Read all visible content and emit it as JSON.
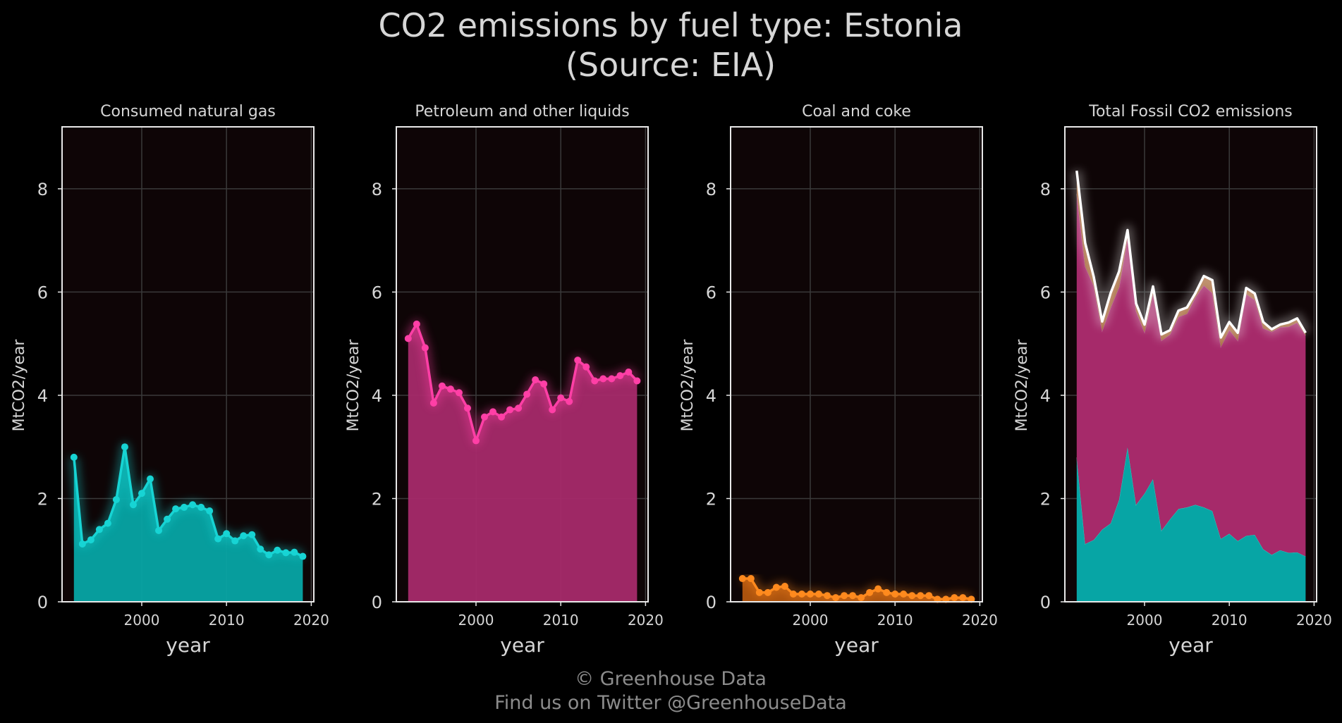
{
  "title_line1": "CO2 emissions by fuel type: Estonia",
  "title_line2": "(Source: EIA)",
  "footer_line1": "© Greenhouse Data",
  "footer_line2": "Find us on Twitter @GreenhouseData",
  "colors": {
    "background": "#000000",
    "panel": "#0e0506",
    "grid": "#3a3a3a",
    "text": "#d6d6d6",
    "gas": "#17d4d4",
    "gas_fill": "#07a5a5",
    "petroleum": "#ff3fa6",
    "petroleum_fill": "#a62a6a",
    "coal": "#ff8a1e",
    "coal_fill": "#b4560f",
    "total": "#ffffff",
    "stack_coal_fill": "#a86a3c"
  },
  "chart_data": [
    {
      "type": "area",
      "title": "Consumed natural gas",
      "xlabel": "year",
      "ylabel": "MtCO2/year",
      "xlim": [
        1990.6,
        2020.3
      ],
      "ylim": [
        0,
        9.2
      ],
      "xticks": [
        2000,
        2010,
        2020
      ],
      "yticks": [
        0,
        2,
        4,
        6,
        8
      ],
      "grid": true,
      "x": [
        1992,
        1993,
        1994,
        1995,
        1996,
        1997,
        1998,
        1999,
        2000,
        2001,
        2002,
        2003,
        2004,
        2005,
        2006,
        2007,
        2008,
        2009,
        2010,
        2011,
        2012,
        2013,
        2014,
        2015,
        2016,
        2017,
        2018,
        2019
      ],
      "series": [
        {
          "key": "gas",
          "values": [
            2.8,
            1.12,
            1.2,
            1.4,
            1.52,
            1.98,
            3.0,
            1.88,
            2.1,
            2.38,
            1.38,
            1.6,
            1.8,
            1.83,
            1.88,
            1.83,
            1.76,
            1.22,
            1.32,
            1.18,
            1.28,
            1.3,
            1.02,
            0.91,
            1.0,
            0.95,
            0.96,
            0.88
          ]
        }
      ]
    },
    {
      "type": "area",
      "title": "Petroleum and other liquids",
      "xlabel": "year",
      "ylabel": "MtCO2/year",
      "xlim": [
        1990.6,
        2020.3
      ],
      "ylim": [
        0,
        9.2
      ],
      "xticks": [
        2000,
        2010,
        2020
      ],
      "yticks": [
        0,
        2,
        4,
        6,
        8
      ],
      "grid": true,
      "x": [
        1992,
        1993,
        1994,
        1995,
        1996,
        1997,
        1998,
        1999,
        2000,
        2001,
        2002,
        2003,
        2004,
        2005,
        2006,
        2007,
        2008,
        2009,
        2010,
        2011,
        2012,
        2013,
        2014,
        2015,
        2016,
        2017,
        2018,
        2019
      ],
      "series": [
        {
          "key": "petroleum",
          "values": [
            5.1,
            5.38,
            4.92,
            3.85,
            4.18,
            4.12,
            4.05,
            3.75,
            3.12,
            3.58,
            3.68,
            3.58,
            3.72,
            3.75,
            4.02,
            4.3,
            4.22,
            3.72,
            3.95,
            3.88,
            4.68,
            4.55,
            4.28,
            4.32,
            4.32,
            4.38,
            4.45,
            4.28
          ]
        }
      ]
    },
    {
      "type": "area",
      "title": "Coal and coke",
      "xlabel": "year",
      "ylabel": "MtCO2/year",
      "xlim": [
        1990.6,
        2020.3
      ],
      "ylim": [
        0,
        9.2
      ],
      "xticks": [
        2000,
        2010,
        2020
      ],
      "yticks": [
        0,
        2,
        4,
        6,
        8
      ],
      "grid": true,
      "x": [
        1992,
        1993,
        1994,
        1995,
        1996,
        1997,
        1998,
        1999,
        2000,
        2001,
        2002,
        2003,
        2004,
        2005,
        2006,
        2007,
        2008,
        2009,
        2010,
        2011,
        2012,
        2013,
        2014,
        2015,
        2016,
        2017,
        2018,
        2019
      ],
      "series": [
        {
          "key": "coal",
          "values": [
            0.45,
            0.45,
            0.18,
            0.18,
            0.28,
            0.3,
            0.15,
            0.15,
            0.15,
            0.15,
            0.12,
            0.08,
            0.12,
            0.12,
            0.08,
            0.18,
            0.25,
            0.18,
            0.15,
            0.15,
            0.12,
            0.12,
            0.12,
            0.05,
            0.05,
            0.08,
            0.08,
            0.05
          ]
        }
      ]
    },
    {
      "type": "area",
      "title": "Total Fossil CO2 emissions",
      "xlabel": "year",
      "ylabel": "MtCO2/year",
      "xlim": [
        1990.6,
        2020.3
      ],
      "ylim": [
        0,
        9.2
      ],
      "xticks": [
        2000,
        2010,
        2020
      ],
      "yticks": [
        0,
        2,
        4,
        6,
        8
      ],
      "grid": true,
      "stacked": true,
      "x": [
        1992,
        1993,
        1994,
        1995,
        1996,
        1997,
        1998,
        1999,
        2000,
        2001,
        2002,
        2003,
        2004,
        2005,
        2006,
        2007,
        2008,
        2009,
        2010,
        2011,
        2012,
        2013,
        2014,
        2015,
        2016,
        2017,
        2018,
        2019
      ],
      "series": [
        {
          "key": "gas",
          "values": [
            2.8,
            1.12,
            1.2,
            1.4,
            1.52,
            1.98,
            3.0,
            1.88,
            2.1,
            2.38,
            1.38,
            1.6,
            1.8,
            1.83,
            1.88,
            1.83,
            1.76,
            1.22,
            1.32,
            1.18,
            1.28,
            1.3,
            1.02,
            0.91,
            1.0,
            0.95,
            0.96,
            0.88
          ]
        },
        {
          "key": "petroleum",
          "values": [
            5.1,
            5.38,
            4.92,
            3.85,
            4.18,
            4.12,
            4.05,
            3.75,
            3.12,
            3.58,
            3.68,
            3.58,
            3.72,
            3.75,
            4.02,
            4.3,
            4.22,
            3.72,
            3.95,
            3.88,
            4.68,
            4.55,
            4.28,
            4.32,
            4.32,
            4.38,
            4.45,
            4.28
          ]
        },
        {
          "key": "coal",
          "values": [
            0.45,
            0.45,
            0.18,
            0.18,
            0.28,
            0.3,
            0.15,
            0.15,
            0.15,
            0.15,
            0.12,
            0.08,
            0.12,
            0.12,
            0.08,
            0.18,
            0.25,
            0.18,
            0.15,
            0.15,
            0.12,
            0.12,
            0.12,
            0.05,
            0.05,
            0.08,
            0.08,
            0.05
          ]
        }
      ]
    }
  ]
}
